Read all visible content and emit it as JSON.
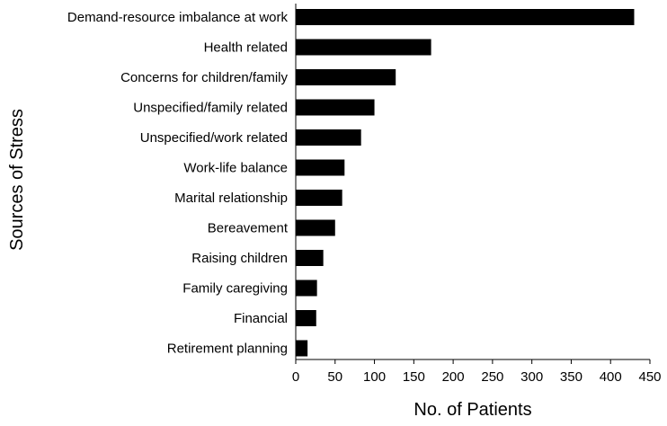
{
  "chart_data": {
    "type": "bar",
    "orientation": "horizontal",
    "categories": [
      "Demand-resource imbalance at work",
      "Health related",
      "Concerns for children/family",
      "Unspecified/family related",
      "Unspecified/work related",
      "Work-life balance",
      "Marital relationship",
      "Bereavement",
      "Raising children",
      "Family caregiving",
      "Financial",
      "Retirement planning"
    ],
    "values": [
      430,
      172,
      127,
      100,
      83,
      62,
      59,
      50,
      35,
      27,
      26,
      15
    ],
    "title": "",
    "xlabel": "No. of Patients",
    "ylabel": "Sources of Stress",
    "xlim": [
      0,
      450
    ],
    "xticks": [
      "0",
      "50",
      "100",
      "150",
      "200",
      "250",
      "300",
      "350",
      "400",
      "450"
    ],
    "grid": false,
    "bar_color": "#000000"
  }
}
